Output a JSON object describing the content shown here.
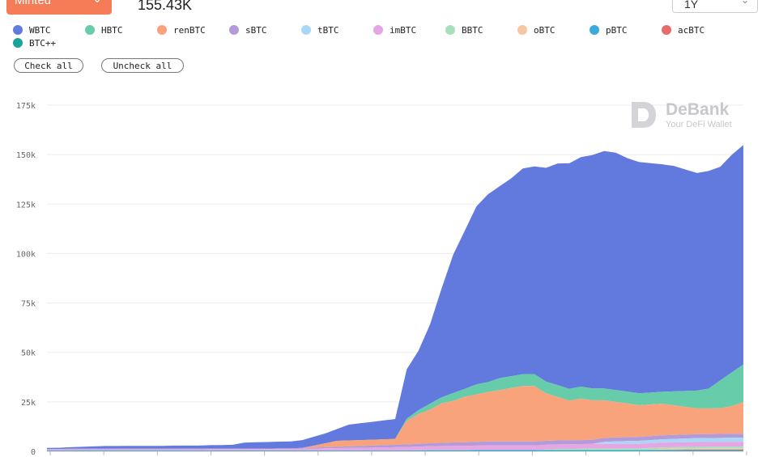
{
  "header": {
    "metric_select_label": "Minted",
    "total_value": "155.43K",
    "range_select_value": "1Y"
  },
  "legend_actions": {
    "check_all": "Check all",
    "uncheck_all": "Uncheck all"
  },
  "watermark": {
    "brand": "DeBank",
    "tagline": "Your DeFi Wallet"
  },
  "colors": {
    "accent": "#f67c58"
  },
  "chart_data": {
    "type": "area",
    "stacked": true,
    "title": "",
    "xlabel": "",
    "ylabel": "",
    "ylim": [
      0,
      175000
    ],
    "y_ticks": [
      "0",
      "25k",
      "50k",
      "75k",
      "100k",
      "125k",
      "150k",
      "175k"
    ],
    "grid": true,
    "legend_position": "top-left",
    "x": [
      0,
      1,
      2,
      3,
      4,
      5,
      6,
      7,
      8,
      9,
      10,
      11,
      12,
      13,
      14,
      15,
      16,
      17,
      18,
      19,
      20,
      21,
      22,
      23,
      24,
      25,
      26,
      27,
      28,
      29,
      30,
      31,
      32,
      33,
      34,
      35,
      36,
      37,
      38,
      39,
      40,
      41,
      42,
      43,
      44,
      45,
      46,
      47,
      48,
      49,
      50,
      51,
      52,
      53,
      54,
      55,
      56,
      57,
      58,
      59,
      60
    ],
    "series": [
      {
        "name": "BTC++",
        "color": "#1aa39b",
        "values": [
          300,
          300,
          300,
          300,
          300,
          300,
          300,
          300,
          300,
          300,
          300,
          300,
          300,
          300,
          300,
          300,
          300,
          300,
          300,
          300,
          300,
          300,
          300,
          300,
          300,
          300,
          300,
          300,
          300,
          300,
          300,
          300,
          300,
          300,
          300,
          300,
          300,
          300,
          300,
          300,
          300,
          300,
          300,
          300,
          300,
          300,
          300,
          300,
          300,
          300,
          300,
          300,
          300,
          300,
          300,
          300,
          300,
          300,
          300,
          300,
          300
        ]
      },
      {
        "name": "acBTC",
        "color": "#e86b6b",
        "values": [
          0,
          0,
          0,
          0,
          0,
          0,
          0,
          0,
          0,
          0,
          0,
          0,
          0,
          0,
          0,
          0,
          0,
          0,
          0,
          0,
          0,
          0,
          0,
          0,
          0,
          0,
          0,
          0,
          0,
          0,
          0,
          0,
          0,
          0,
          0,
          0,
          0,
          0,
          0,
          0,
          0,
          0,
          0,
          0,
          0,
          0,
          0,
          0,
          0,
          0,
          0,
          0,
          100,
          200,
          200,
          300,
          300,
          300,
          300,
          300,
          300
        ]
      },
      {
        "name": "pBTC",
        "color": "#3aacdc",
        "values": [
          0,
          0,
          0,
          0,
          0,
          0,
          0,
          0,
          0,
          0,
          0,
          0,
          0,
          0,
          0,
          0,
          0,
          0,
          0,
          0,
          0,
          0,
          0,
          0,
          0,
          0,
          0,
          0,
          0,
          0,
          0,
          0,
          100,
          200,
          200,
          200,
          200,
          300,
          300,
          300,
          300,
          300,
          300,
          300,
          300,
          300,
          300,
          300,
          300,
          300,
          300,
          300,
          300,
          300,
          300,
          300,
          300,
          300,
          300,
          300,
          300
        ]
      },
      {
        "name": "oBTC",
        "color": "#f7c6a2",
        "values": [
          0,
          0,
          0,
          0,
          0,
          0,
          0,
          0,
          0,
          0,
          0,
          0,
          0,
          0,
          0,
          0,
          0,
          0,
          0,
          0,
          0,
          0,
          0,
          0,
          0,
          0,
          0,
          0,
          0,
          0,
          0,
          0,
          0,
          0,
          0,
          0,
          0,
          0,
          0,
          0,
          0,
          0,
          0,
          0,
          0,
          0,
          0,
          0,
          0,
          0,
          0,
          0,
          200,
          400,
          500,
          500,
          600,
          600,
          700,
          700,
          700
        ]
      },
      {
        "name": "BBTC",
        "color": "#a8e0bd",
        "values": [
          0,
          0,
          0,
          0,
          0,
          0,
          0,
          0,
          0,
          0,
          0,
          0,
          0,
          0,
          0,
          0,
          0,
          0,
          0,
          0,
          0,
          0,
          0,
          0,
          0,
          0,
          0,
          0,
          0,
          0,
          0,
          0,
          0,
          0,
          0,
          0,
          0,
          0,
          0,
          0,
          0,
          0,
          0,
          300,
          500,
          600,
          700,
          800,
          800,
          800,
          800,
          800,
          800,
          800,
          800,
          800,
          800,
          800,
          800,
          800,
          800
        ]
      },
      {
        "name": "imBTC",
        "color": "#e5a6e3",
        "values": [
          600,
          600,
          700,
          700,
          700,
          700,
          700,
          700,
          700,
          700,
          700,
          700,
          700,
          700,
          800,
          800,
          800,
          800,
          800,
          800,
          900,
          900,
          1000,
          1100,
          1200,
          1300,
          1400,
          1500,
          1600,
          1700,
          1800,
          1900,
          2000,
          2100,
          2200,
          2300,
          2300,
          2300,
          2400,
          2400,
          2400,
          2400,
          2400,
          2400,
          2400,
          2400,
          2400,
          2400,
          2400,
          2400,
          2400,
          2400,
          2400,
          2400,
          2400,
          2400,
          2400,
          2400,
          2400,
          2400,
          2400
        ]
      },
      {
        "name": "tBTC",
        "color": "#a9d7f5",
        "values": [
          0,
          0,
          0,
          0,
          0,
          0,
          0,
          0,
          0,
          0,
          0,
          0,
          0,
          0,
          0,
          0,
          0,
          0,
          0,
          0,
          0,
          0,
          0,
          0,
          0,
          0,
          0,
          0,
          0,
          0,
          0,
          0,
          0,
          0,
          0,
          0,
          0,
          0,
          0,
          0,
          0,
          0,
          0,
          0,
          0,
          0,
          0,
          0,
          1000,
          1200,
          1400,
          1500,
          1600,
          1700,
          1800,
          1900,
          2000,
          2000,
          2000,
          2100,
          2100
        ]
      },
      {
        "name": "sBTC",
        "color": "#b59ad9",
        "values": [
          300,
          300,
          300,
          300,
          300,
          300,
          300,
          300,
          300,
          300,
          300,
          300,
          300,
          300,
          300,
          300,
          300,
          300,
          300,
          300,
          300,
          300,
          400,
          500,
          600,
          700,
          800,
          900,
          1000,
          1100,
          1200,
          1300,
          1400,
          1500,
          1600,
          1700,
          1800,
          1900,
          2000,
          2000,
          2000,
          2000,
          2000,
          2000,
          2000,
          2000,
          2000,
          2000,
          2000,
          2000,
          2000,
          2000,
          2000,
          2000,
          2000,
          2000,
          2000,
          2000,
          2000,
          2000,
          2000
        ]
      },
      {
        "name": "renBTC",
        "color": "#f9a37d",
        "values": [
          0,
          0,
          0,
          0,
          0,
          0,
          0,
          0,
          0,
          0,
          0,
          0,
          0,
          0,
          0,
          0,
          0,
          0,
          0,
          0,
          0,
          0,
          0,
          1000,
          2000,
          3000,
          3000,
          3000,
          3000,
          3000,
          3000,
          12000,
          15000,
          17000,
          20000,
          21000,
          23000,
          24000,
          25000,
          26000,
          27000,
          28000,
          28000,
          24000,
          22000,
          20000,
          21000,
          20000,
          19000,
          18000,
          17000,
          16000,
          16000,
          16000,
          15000,
          14000,
          13000,
          13000,
          13000,
          14000,
          16000
        ]
      },
      {
        "name": "HBTC",
        "color": "#66ccaa",
        "values": [
          0,
          0,
          0,
          0,
          0,
          0,
          0,
          0,
          0,
          0,
          0,
          0,
          0,
          0,
          0,
          0,
          0,
          0,
          0,
          0,
          0,
          0,
          0,
          0,
          0,
          0,
          0,
          0,
          0,
          0,
          0,
          1000,
          2000,
          3000,
          3000,
          4000,
          4000,
          5000,
          5000,
          6000,
          6000,
          6000,
          6000,
          6000,
          6000,
          6000,
          6000,
          6000,
          6000,
          6000,
          6000,
          6000,
          6000,
          6000,
          7000,
          8000,
          9000,
          10000,
          14000,
          17000,
          19000
        ]
      },
      {
        "name": "WBTC",
        "color": "#6279de",
        "values": [
          500,
          600,
          800,
          1000,
          1200,
          1400,
          1400,
          1500,
          1500,
          1500,
          1500,
          1600,
          1600,
          1600,
          1700,
          1800,
          1900,
          3000,
          3200,
          3300,
          3400,
          3500,
          4000,
          4500,
          5000,
          6000,
          8000,
          8500,
          9000,
          9500,
          10000,
          25000,
          30000,
          40000,
          55000,
          70000,
          80000,
          90000,
          95000,
          97000,
          100000,
          104000,
          105000,
          108000,
          112000,
          114000,
          116000,
          118000,
          120000,
          120000,
          118000,
          117000,
          116000,
          115000,
          114000,
          112000,
          110000,
          110000,
          108000,
          110000,
          111000
        ]
      }
    ]
  }
}
